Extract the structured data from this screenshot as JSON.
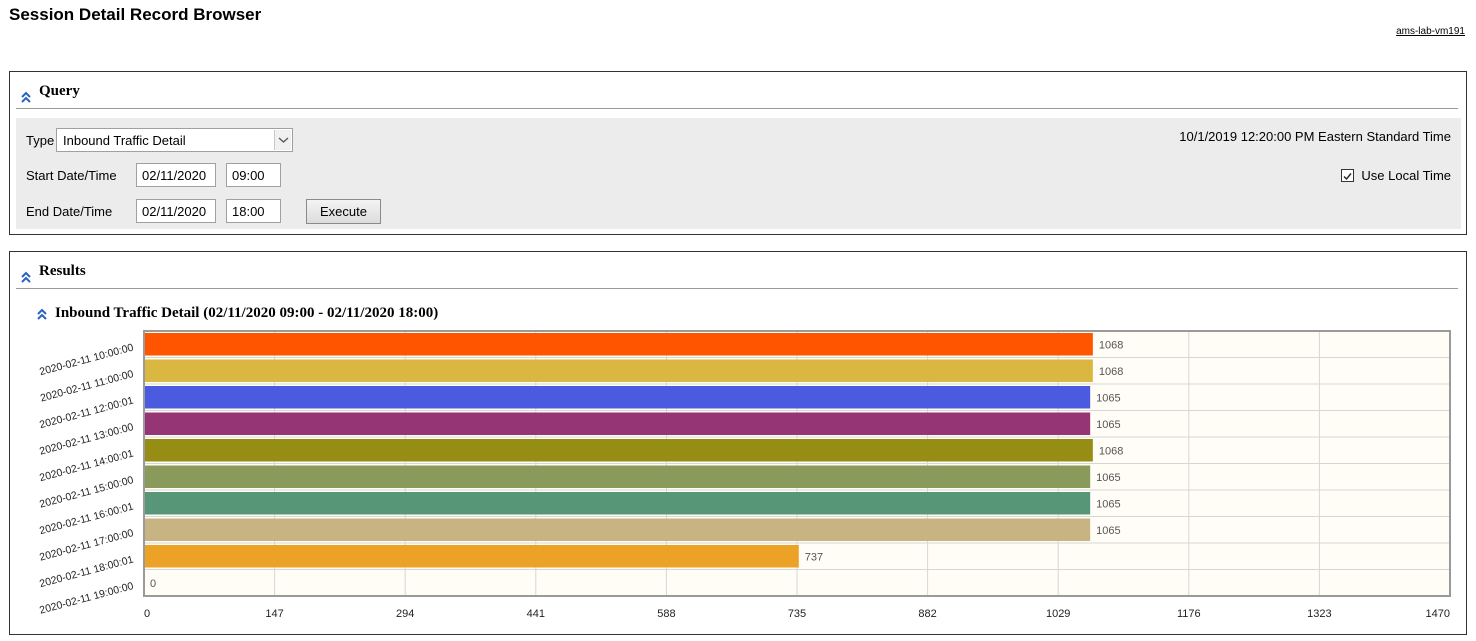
{
  "page": {
    "title": "Session Detail Record Browser",
    "host_link": "ams-lab-vm191"
  },
  "query": {
    "title": "Query",
    "type_label": "Type",
    "type_value": "Inbound Traffic Detail",
    "start_label": "Start Date/Time",
    "start_date": "02/11/2020",
    "start_time": "09:00",
    "end_label": "End Date/Time",
    "end_date": "02/11/2020",
    "end_time": "18:00",
    "execute_label": "Execute",
    "current_datetime": "10/1/2019 12:20:00 PM Eastern Standard Time",
    "use_local_time_label": "Use Local Time",
    "use_local_time_checked": true
  },
  "results": {
    "title": "Results",
    "chart_title": "Inbound Traffic Detail (02/11/2020 09:00 - 02/11/2020 18:00)"
  },
  "chart_data": {
    "type": "bar",
    "orientation": "horizontal",
    "categories": [
      "2020-02-11 10:00:00",
      "2020-02-11 11:00:00",
      "2020-02-11 12:00:01",
      "2020-02-11 13:00:00",
      "2020-02-11 14:00:01",
      "2020-02-11 15:00:00",
      "2020-02-11 16:00:01",
      "2020-02-11 17:00:00",
      "2020-02-11 18:00:01",
      "2020-02-11 19:00:00"
    ],
    "values": [
      1068,
      1068,
      1065,
      1065,
      1068,
      1065,
      1065,
      1065,
      737,
      0
    ],
    "colors": [
      "#ff5500",
      "#d9b740",
      "#4b5be0",
      "#963575",
      "#968d15",
      "#899a5b",
      "#579677",
      "#c8b382",
      "#eba226",
      "#cccccc"
    ],
    "xticks": [
      0,
      147,
      294,
      441,
      588,
      735,
      882,
      1029,
      1176,
      1323,
      1470
    ],
    "xlim": [
      0,
      1470
    ],
    "grid": true,
    "title": "",
    "xlabel": "",
    "ylabel": ""
  },
  "colors": {
    "plot_background": "#fffdf6",
    "query_background": "#ececec",
    "icon_blue": "#2a62c4"
  }
}
